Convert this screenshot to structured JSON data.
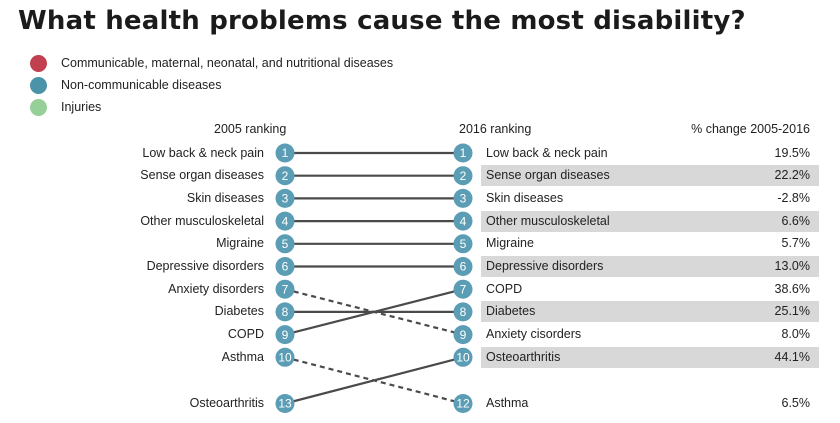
{
  "title": "What health problems cause the most disability?",
  "legend": [
    {
      "label": "Communicable, maternal, neonatal, and nutritional diseases",
      "color": "#c0404f"
    },
    {
      "label": "Non-communicable diseases",
      "color": "#4a93a8"
    },
    {
      "label": "Injuries",
      "color": "#97cf98"
    }
  ],
  "headers": {
    "left": "2005 ranking",
    "middle": "2016 ranking",
    "right": "% change 2005-2016"
  },
  "colors": {
    "node": "#5b9db4",
    "line": "#4a4a4a",
    "row_highlight": "#d8d8d8"
  },
  "chart_data": {
    "type": "table",
    "title": "What health problems cause the most disability?",
    "rank_2005": [
      {
        "rank": 1,
        "label": "Low back & neck pain"
      },
      {
        "rank": 2,
        "label": "Sense organ diseases"
      },
      {
        "rank": 3,
        "label": "Skin diseases"
      },
      {
        "rank": 4,
        "label": "Other musculoskeletal"
      },
      {
        "rank": 5,
        "label": "Migraine"
      },
      {
        "rank": 6,
        "label": "Depressive disorders"
      },
      {
        "rank": 7,
        "label": "Anxiety disorders"
      },
      {
        "rank": 8,
        "label": "Diabetes"
      },
      {
        "rank": 9,
        "label": "COPD"
      },
      {
        "rank": 10,
        "label": "Asthma"
      },
      {
        "rank": 13,
        "label": "Osteoarthritis"
      }
    ],
    "rank_2016": [
      {
        "rank": 1,
        "label": "Low back & neck pain",
        "change": "19.5%",
        "highlight": false
      },
      {
        "rank": 2,
        "label": "Sense organ diseases",
        "change": "22.2%",
        "highlight": true
      },
      {
        "rank": 3,
        "label": "Skin diseases",
        "change": "-2.8%",
        "highlight": false
      },
      {
        "rank": 4,
        "label": "Other musculoskeletal",
        "change": "6.6%",
        "highlight": true
      },
      {
        "rank": 5,
        "label": "Migraine",
        "change": "5.7%",
        "highlight": false
      },
      {
        "rank": 6,
        "label": "Depressive disorders",
        "change": "13.0%",
        "highlight": true
      },
      {
        "rank": 7,
        "label": "COPD",
        "change": "38.6%",
        "highlight": false
      },
      {
        "rank": 8,
        "label": "Diabetes",
        "change": "25.1%",
        "highlight": true
      },
      {
        "rank": 9,
        "label": "Anxiety cisorders",
        "change": "8.0%",
        "highlight": false
      },
      {
        "rank": 10,
        "label": "Osteoarthritis",
        "change": "44.1%",
        "highlight": true
      },
      {
        "rank": 12,
        "label": "Asthma",
        "change": "6.5%",
        "highlight": false
      }
    ],
    "links": [
      {
        "from": 1,
        "to": 1,
        "style": "solid"
      },
      {
        "from": 2,
        "to": 2,
        "style": "solid"
      },
      {
        "from": 3,
        "to": 3,
        "style": "solid"
      },
      {
        "from": 4,
        "to": 4,
        "style": "solid"
      },
      {
        "from": 5,
        "to": 5,
        "style": "solid"
      },
      {
        "from": 6,
        "to": 6,
        "style": "solid"
      },
      {
        "from": 7,
        "to": 9,
        "style": "dashed"
      },
      {
        "from": 8,
        "to": 8,
        "style": "solid"
      },
      {
        "from": 9,
        "to": 7,
        "style": "solid"
      },
      {
        "from": 10,
        "to": 12,
        "style": "dashed"
      },
      {
        "from": 13,
        "to": 10,
        "style": "solid"
      }
    ]
  }
}
